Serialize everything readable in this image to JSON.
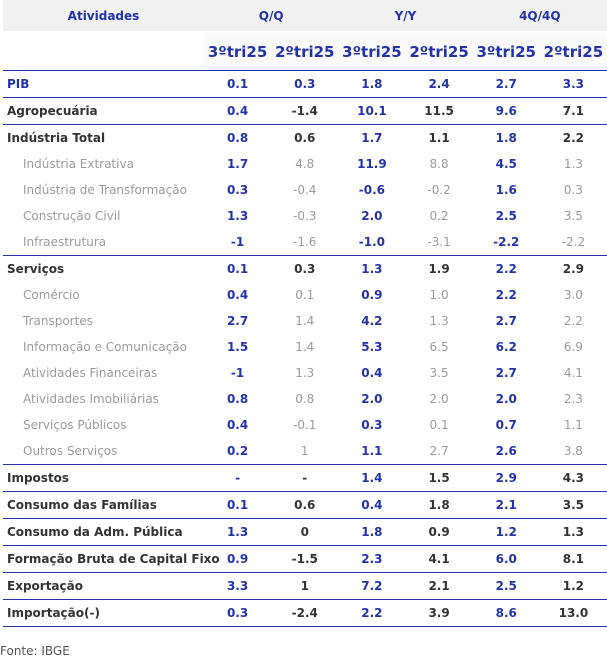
{
  "header": {
    "col_label": "Atividades",
    "groups": [
      "Q/Q",
      "Y/Y",
      "4Q/4Q"
    ],
    "periods": [
      "3ºtri25",
      "2ºtri25",
      "3ºtri25",
      "2ºtri25",
      "3ºtri25",
      "2ºtri25"
    ]
  },
  "rows": [
    {
      "label": "PIB",
      "kind": "pib",
      "values": [
        "0.1",
        "0.3",
        "1.8",
        "2.4",
        "2.7",
        "3.3"
      ]
    },
    {
      "label": "Agropecuária",
      "kind": "main",
      "values": [
        "0.4",
        "-1.4",
        "10.1",
        "11.5",
        "9.6",
        "7.1"
      ]
    },
    {
      "label": "Indústria Total",
      "kind": "main",
      "values": [
        "0.8",
        "0.6",
        "1.7",
        "1.1",
        "1.8",
        "2.2"
      ]
    },
    {
      "label": "Indústria Extrativa",
      "kind": "sub",
      "values": [
        "1.7",
        "4.8",
        "11.9",
        "8.8",
        "4.5",
        "1.3"
      ]
    },
    {
      "label": "Indústria de Transformação",
      "kind": "sub",
      "values": [
        "0.3",
        "-0.4",
        "-0.6",
        "-0.2",
        "1.6",
        "0.3"
      ]
    },
    {
      "label": "Construção Civil",
      "kind": "sub",
      "values": [
        "1.3",
        "-0.3",
        "2.0",
        "0.2",
        "2.5",
        "3.5"
      ]
    },
    {
      "label": "Infraestrutura",
      "kind": "sub",
      "values": [
        "-1",
        "-1.6",
        "-1.0",
        "-3.1",
        "-2.2",
        "-2.2"
      ]
    },
    {
      "label": "Serviços",
      "kind": "main",
      "values": [
        "0.1",
        "0.3",
        "1.3",
        "1.9",
        "2.2",
        "2.9"
      ]
    },
    {
      "label": "Comércio",
      "kind": "sub",
      "values": [
        "0.4",
        "0.1",
        "0.9",
        "1.0",
        "2.2",
        "3.0"
      ]
    },
    {
      "label": "Transportes",
      "kind": "sub",
      "values": [
        "2.7",
        "1.4",
        "4.2",
        "1.3",
        "2.7",
        "2.2"
      ]
    },
    {
      "label": "Informação e Comunicação",
      "kind": "sub",
      "values": [
        "1.5",
        "1.4",
        "5.3",
        "6.5",
        "6.2",
        "6.9"
      ]
    },
    {
      "label": "Atividades Financeiras",
      "kind": "sub",
      "values": [
        "-1",
        "1.3",
        "0.4",
        "3.5",
        "2.7",
        "4.1"
      ]
    },
    {
      "label": "Atividades Imobiliárias",
      "kind": "sub",
      "values": [
        "0.8",
        "0.8",
        "2.0",
        "2.0",
        "2.0",
        "2.3"
      ]
    },
    {
      "label": "Serviços Públicos",
      "kind": "sub",
      "values": [
        "0.4",
        "-0.1",
        "0.3",
        "0.1",
        "0.7",
        "1.1"
      ]
    },
    {
      "label": "Outros Serviços",
      "kind": "sub",
      "values": [
        "0.2",
        "1",
        "1.1",
        "2.7",
        "2.6",
        "3.8"
      ]
    },
    {
      "label": "Impostos",
      "kind": "main",
      "values": [
        "-",
        "-",
        "1.4",
        "1.5",
        "2.9",
        "4.3"
      ]
    },
    {
      "label": "Consumo das Famílias",
      "kind": "main",
      "values": [
        "0.1",
        "0.6",
        "0.4",
        "1.8",
        "2.1",
        "3.5"
      ]
    },
    {
      "label": "Consumo da Adm. Pública",
      "kind": "main",
      "values": [
        "1.3",
        "0",
        "1.8",
        "0.9",
        "1.2",
        "1.3"
      ]
    },
    {
      "label": "Formação Bruta de Capital Fixo",
      "kind": "main",
      "values": [
        "0.9",
        "-1.5",
        "2.3",
        "4.1",
        "6.0",
        "8.1"
      ]
    },
    {
      "label": "Exportação",
      "kind": "main",
      "values": [
        "3.3",
        "1",
        "7.2",
        "2.1",
        "2.5",
        "1.2"
      ]
    },
    {
      "label": "Importação(-)",
      "kind": "main",
      "values": [
        "0.3",
        "-2.4",
        "2.2",
        "3.9",
        "8.6",
        "13.0"
      ]
    }
  ],
  "source": "Fonte: IBGE",
  "colors": {
    "accent": "#2233aa",
    "muted": "#9a9a9a",
    "text": "#333333"
  }
}
